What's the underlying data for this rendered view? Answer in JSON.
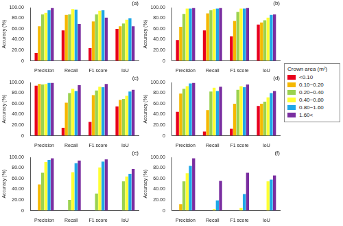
{
  "legend_title": "Crown area (m²)",
  "chart_data": [
    {
      "type": "bar",
      "title": "(a)",
      "y_label": "Accuracy (%)",
      "grid": false,
      "categories": [
        "Precision",
        "Recall",
        "F1 score",
        "IoU"
      ],
      "ylim": [
        0,
        100
      ],
      "yticks": [
        0,
        {
          "value": 20,
          "label": "20.00"
        },
        {
          "value": 40,
          "label": "40.00"
        },
        {
          "value": 60,
          "label": "60.00"
        },
        {
          "value": 80,
          "label": "80.00"
        },
        {
          "value": 100,
          "label": "100.00"
        }
      ],
      "series": [
        {
          "name": "<0.10",
          "color": "#e8001c",
          "values": [
            15,
            57,
            24,
            60
          ]
        },
        {
          "name": "0.10~0.20",
          "color": "#f5b800",
          "values": [
            65,
            86,
            74,
            65
          ]
        },
        {
          "name": "0.20~0.40",
          "color": "#9bd24f",
          "values": [
            87,
            87,
            87,
            70
          ]
        },
        {
          "name": "0.40~0.80",
          "color": "#ffff33",
          "values": [
            90,
            97,
            94,
            77
          ]
        },
        {
          "name": "0.80~1.60",
          "color": "#1fa8e8",
          "values": [
            95,
            96,
            95,
            80
          ]
        },
        {
          "name": "1.60<",
          "color": "#7a2ea0",
          "values": [
            99,
            69,
            81,
            65
          ]
        }
      ]
    },
    {
      "type": "bar",
      "title": "(b)",
      "y_label": "Accuracy (%)",
      "grid": false,
      "legend": "right",
      "categories": [
        "Precision",
        "Recall",
        "F1 score",
        "IoU"
      ],
      "ylim": [
        0,
        100
      ],
      "yticks": [
        0,
        {
          "value": 20,
          "label": "20.00"
        },
        {
          "value": 40,
          "label": "40.00"
        },
        {
          "value": 60,
          "label": "60.00"
        },
        {
          "value": 80,
          "label": "80.00"
        },
        {
          "value": 100,
          "label": "100.00"
        }
      ],
      "series": [
        {
          "name": "<0.10",
          "color": "#e8001c",
          "values": [
            39,
            57,
            46,
            68
          ]
        },
        {
          "name": "0.10~0.20",
          "color": "#f5b800",
          "values": [
            64,
            89,
            75,
            72
          ]
        },
        {
          "name": "0.20~0.40",
          "color": "#9bd24f",
          "values": [
            88,
            95,
            92,
            76
          ]
        },
        {
          "name": "0.40~0.80",
          "color": "#ffff33",
          "values": [
            98,
            97,
            98,
            81
          ]
        },
        {
          "name": "0.80~1.60",
          "color": "#1fa8e8",
          "values": [
            98,
            98,
            98,
            86
          ]
        },
        {
          "name": "1.60<",
          "color": "#7a2ea0",
          "values": [
            99,
            99,
            99,
            87
          ]
        }
      ]
    },
    {
      "type": "bar",
      "title": "(c)",
      "y_label": "Accuracy (%)",
      "grid": false,
      "categories": [
        "Precision",
        "Recall",
        "F1 score",
        "IoU"
      ],
      "ylim": [
        0,
        100
      ],
      "yticks": [
        0,
        {
          "value": 20,
          "label": "20.00"
        },
        {
          "value": 40,
          "label": "40.00"
        },
        {
          "value": 60,
          "label": "60.00"
        },
        {
          "value": 80,
          "label": "80.00"
        },
        {
          "value": 100,
          "label": "100.00"
        }
      ],
      "series": [
        {
          "name": "<0.10",
          "color": "#e8001c",
          "values": [
            94,
            15,
            26,
            55
          ]
        },
        {
          "name": "0.10~0.20",
          "color": "#f5b800",
          "values": [
            97,
            62,
            76,
            67
          ]
        },
        {
          "name": "0.20~0.40",
          "color": "#9bd24f",
          "values": [
            96,
            80,
            85,
            69
          ]
        },
        {
          "name": "0.40~0.80",
          "color": "#ffff33",
          "values": [
            97,
            88,
            92,
            75
          ]
        },
        {
          "name": "0.80~1.60",
          "color": "#1fa8e8",
          "values": [
            99,
            84,
            91,
            83
          ]
        },
        {
          "name": "1.60<",
          "color": "#7a2ea0",
          "values": [
            99,
            95,
            97,
            86
          ]
        }
      ]
    },
    {
      "type": "bar",
      "title": "(d)",
      "y_label": "Accuracy (%)",
      "grid": false,
      "categories": [
        "Precision",
        "Recall",
        "F1 score",
        "IoU"
      ],
      "ylim": [
        0,
        100
      ],
      "yticks": [
        0,
        {
          "value": 20,
          "label": "20.00"
        },
        {
          "value": 40,
          "label": "40.00"
        },
        {
          "value": 60,
          "label": "60.00"
        },
        {
          "value": 80,
          "label": "80.00"
        },
        {
          "value": 100,
          "label": "100.00"
        }
      ],
      "series": [
        {
          "name": "<0.10",
          "color": "#e8001c",
          "values": [
            45,
            8,
            13,
            56
          ]
        },
        {
          "name": "0.10~0.20",
          "color": "#f5b800",
          "values": [
            79,
            48,
            60,
            60
          ]
        },
        {
          "name": "0.20~0.40",
          "color": "#9bd24f",
          "values": [
            88,
            83,
            86,
            64
          ]
        },
        {
          "name": "0.40~0.80",
          "color": "#ffff33",
          "values": [
            93,
            90,
            93,
            72
          ]
        },
        {
          "name": "0.80~1.60",
          "color": "#1fa8e8",
          "values": [
            98,
            84,
            91,
            80
          ]
        },
        {
          "name": "1.60<",
          "color": "#7a2ea0",
          "values": [
            99,
            92,
            96,
            84
          ]
        }
      ]
    },
    {
      "type": "bar",
      "title": "(e)",
      "y_label": "Accuracy (%)",
      "grid": false,
      "categories": [
        "Precision",
        "Recall",
        "F1 score",
        "IoU"
      ],
      "ylim": [
        0,
        100
      ],
      "yticks": [
        0,
        {
          "value": 20,
          "label": "20.00"
        },
        {
          "value": 40,
          "label": "40.00"
        },
        {
          "value": 60,
          "label": "60.00"
        },
        {
          "value": 80,
          "label": "80.00"
        },
        {
          "value": 100,
          "label": "100.00"
        }
      ],
      "series": [
        {
          "name": "<0.10",
          "color": "#e8001c",
          "values": [
            null,
            null,
            null,
            null
          ]
        },
        {
          "name": "0.10~0.20",
          "color": "#f5b800",
          "values": [
            49,
            null,
            null,
            null
          ]
        },
        {
          "name": "0.20~0.40",
          "color": "#9bd24f",
          "values": [
            71,
            20,
            32,
            55
          ]
        },
        {
          "name": "0.40~0.80",
          "color": "#ffff33",
          "values": [
            91,
            72,
            81,
            64
          ]
        },
        {
          "name": "0.80~1.60",
          "color": "#1fa8e8",
          "values": [
            95,
            89,
            92,
            69
          ]
        },
        {
          "name": "1.60<",
          "color": "#7a2ea0",
          "values": [
            98,
            94,
            96,
            78
          ]
        }
      ]
    },
    {
      "type": "bar",
      "title": "(f)",
      "y_label": "Accuracy (%)",
      "grid": false,
      "categories": [
        "Precision",
        "Recall",
        "F1 score",
        "IoU"
      ],
      "ylim": [
        0,
        100
      ],
      "yticks": [
        0,
        {
          "value": 20,
          "label": "20.00"
        },
        {
          "value": 40,
          "label": "40.00"
        },
        {
          "value": 60,
          "label": "60.00"
        },
        {
          "value": 80,
          "label": "80.00"
        },
        {
          "value": 100,
          "label": "100.00"
        }
      ],
      "series": [
        {
          "name": "<0.10",
          "color": "#e8001c",
          "values": [
            null,
            null,
            null,
            null
          ]
        },
        {
          "name": "0.10~0.20",
          "color": "#f5b800",
          "values": [
            12,
            null,
            null,
            null
          ]
        },
        {
          "name": "0.20~0.40",
          "color": "#9bd24f",
          "values": [
            55,
            null,
            null,
            null
          ]
        },
        {
          "name": "0.40~0.80",
          "color": "#ffff33",
          "values": [
            70,
            3,
            5,
            55
          ]
        },
        {
          "name": "0.80~1.60",
          "color": "#1fa8e8",
          "values": [
            84,
            19,
            31,
            58
          ]
        },
        {
          "name": "1.60<",
          "color": "#7a2ea0",
          "values": [
            98,
            56,
            71,
            66
          ]
        }
      ]
    }
  ]
}
